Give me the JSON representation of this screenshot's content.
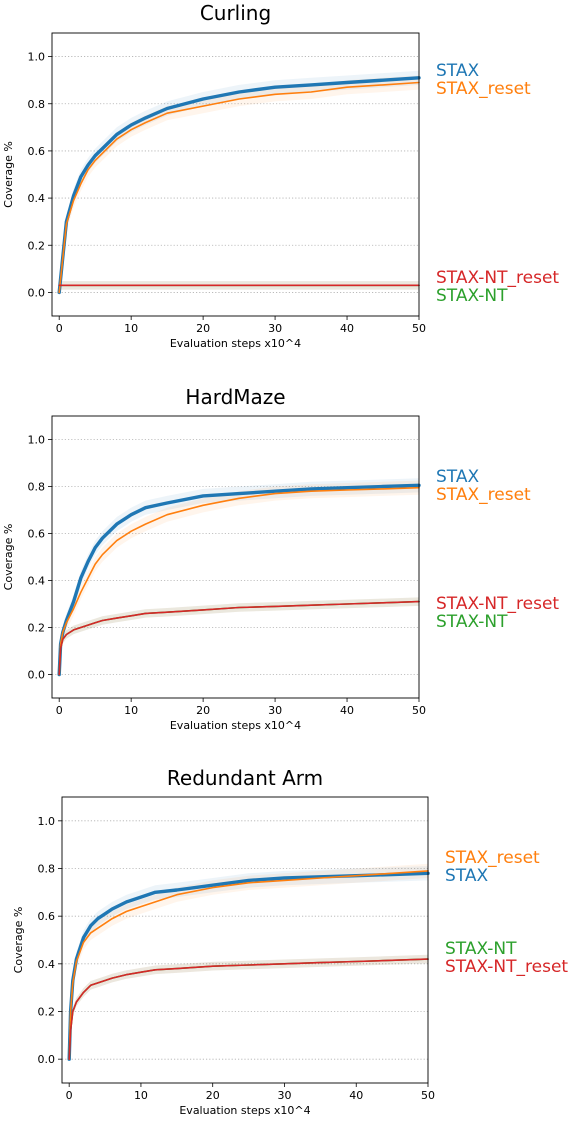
{
  "colors": {
    "STAX": "#1f77b4",
    "STAX_reset": "#ff7f0e",
    "STAX-NT_reset": "#d62728",
    "STAX-NT": "#2ca02c",
    "grid": "#b0b0b0"
  },
  "chart_data": [
    {
      "type": "line",
      "title": "Curling",
      "xlabel": "Evaluation steps x10^4",
      "ylabel": "Coverage %",
      "xlim": [
        -1,
        50
      ],
      "ylim": [
        -0.1,
        1.1
      ],
      "xticks": [
        "0",
        "10",
        "20",
        "30",
        "40",
        "50"
      ],
      "yticks": [
        "0.0",
        "0.2",
        "0.4",
        "0.6",
        "0.8",
        "1.0"
      ],
      "grid": "horizontal dotted",
      "legend_order": [
        "STAX",
        "STAX_reset",
        "STAX-NT_reset",
        "STAX-NT"
      ],
      "x": [
        0,
        1,
        2,
        3,
        4,
        5,
        6,
        8,
        10,
        12,
        15,
        20,
        25,
        30,
        35,
        40,
        45,
        50
      ],
      "series": [
        {
          "name": "STAX",
          "values": [
            0.0,
            0.3,
            0.41,
            0.49,
            0.54,
            0.58,
            0.61,
            0.67,
            0.71,
            0.74,
            0.78,
            0.82,
            0.85,
            0.87,
            0.88,
            0.89,
            0.9,
            0.91
          ]
        },
        {
          "name": "STAX_reset",
          "values": [
            0.0,
            0.29,
            0.39,
            0.46,
            0.52,
            0.56,
            0.59,
            0.65,
            0.69,
            0.72,
            0.76,
            0.79,
            0.82,
            0.84,
            0.85,
            0.87,
            0.88,
            0.89
          ]
        },
        {
          "name": "STAX-NT_reset",
          "values": [
            0.03,
            0.03,
            0.03,
            0.03,
            0.03,
            0.03,
            0.03,
            0.03,
            0.03,
            0.03,
            0.03,
            0.03,
            0.03,
            0.03,
            0.03,
            0.03,
            0.03,
            0.03
          ]
        },
        {
          "name": "STAX-NT",
          "values": [
            0.03,
            0.03,
            0.03,
            0.03,
            0.03,
            0.03,
            0.03,
            0.03,
            0.03,
            0.03,
            0.03,
            0.03,
            0.03,
            0.03,
            0.03,
            0.03,
            0.03,
            0.03
          ]
        }
      ]
    },
    {
      "type": "line",
      "title": "HardMaze",
      "xlabel": "Evaluation steps x10^4",
      "ylabel": "Coverage %",
      "xlim": [
        -1,
        50
      ],
      "ylim": [
        -0.1,
        1.1
      ],
      "xticks": [
        "0",
        "10",
        "20",
        "30",
        "40",
        "50"
      ],
      "yticks": [
        "0.0",
        "0.2",
        "0.4",
        "0.6",
        "0.8",
        "1.0"
      ],
      "grid": "horizontal dotted",
      "legend_order": [
        "STAX",
        "STAX_reset",
        "STAX-NT_reset",
        "STAX-NT"
      ],
      "x": [
        0,
        0.2,
        0.5,
        1,
        2,
        3,
        4,
        5,
        6,
        8,
        10,
        12,
        15,
        20,
        25,
        30,
        35,
        40,
        45,
        50
      ],
      "series": [
        {
          "name": "STAX",
          "values": [
            0.0,
            0.13,
            0.18,
            0.23,
            0.31,
            0.41,
            0.48,
            0.54,
            0.58,
            0.64,
            0.68,
            0.71,
            0.73,
            0.76,
            0.77,
            0.78,
            0.79,
            0.795,
            0.8,
            0.805
          ]
        },
        {
          "name": "STAX_reset",
          "values": [
            0.0,
            0.13,
            0.18,
            0.22,
            0.28,
            0.35,
            0.41,
            0.47,
            0.51,
            0.57,
            0.61,
            0.64,
            0.68,
            0.72,
            0.75,
            0.77,
            0.78,
            0.785,
            0.79,
            0.795
          ]
        },
        {
          "name": "STAX-NT_reset",
          "values": [
            0.0,
            0.11,
            0.15,
            0.17,
            0.19,
            0.2,
            0.21,
            0.22,
            0.23,
            0.24,
            0.25,
            0.26,
            0.265,
            0.275,
            0.285,
            0.29,
            0.295,
            0.3,
            0.305,
            0.31
          ]
        },
        {
          "name": "STAX-NT",
          "values": [
            0.0,
            0.11,
            0.15,
            0.17,
            0.19,
            0.2,
            0.21,
            0.22,
            0.23,
            0.24,
            0.25,
            0.26,
            0.265,
            0.275,
            0.285,
            0.29,
            0.295,
            0.3,
            0.305,
            0.31
          ]
        }
      ]
    },
    {
      "type": "line",
      "title": "Redundant Arm",
      "xlabel": "Evaluation steps x10^4",
      "ylabel": "Coverage %",
      "xlim": [
        -1,
        50
      ],
      "ylim": [
        -0.1,
        1.1
      ],
      "xticks": [
        "0",
        "10",
        "20",
        "30",
        "40",
        "50"
      ],
      "yticks": [
        "0.0",
        "0.2",
        "0.4",
        "0.6",
        "0.8",
        "1.0"
      ],
      "grid": "horizontal dotted",
      "legend_order": [
        "STAX_reset",
        "STAX",
        "STAX-NT",
        "STAX-NT_reset"
      ],
      "x": [
        0,
        0.2,
        0.5,
        1,
        2,
        3,
        4,
        5,
        6,
        8,
        10,
        12,
        15,
        20,
        25,
        30,
        35,
        40,
        45,
        50
      ],
      "series": [
        {
          "name": "STAX_reset",
          "values": [
            0.0,
            0.2,
            0.32,
            0.41,
            0.49,
            0.53,
            0.55,
            0.57,
            0.59,
            0.62,
            0.64,
            0.66,
            0.69,
            0.72,
            0.74,
            0.75,
            0.76,
            0.77,
            0.78,
            0.79
          ]
        },
        {
          "name": "STAX",
          "values": [
            0.0,
            0.2,
            0.33,
            0.42,
            0.51,
            0.56,
            0.59,
            0.61,
            0.63,
            0.66,
            0.68,
            0.7,
            0.71,
            0.73,
            0.75,
            0.76,
            0.765,
            0.77,
            0.775,
            0.78
          ]
        },
        {
          "name": "STAX-NT",
          "values": [
            0.0,
            0.12,
            0.2,
            0.24,
            0.28,
            0.31,
            0.32,
            0.33,
            0.34,
            0.355,
            0.365,
            0.375,
            0.38,
            0.39,
            0.395,
            0.4,
            0.405,
            0.41,
            0.415,
            0.42
          ]
        },
        {
          "name": "STAX-NT_reset",
          "values": [
            0.0,
            0.12,
            0.2,
            0.24,
            0.28,
            0.31,
            0.32,
            0.33,
            0.34,
            0.355,
            0.365,
            0.375,
            0.38,
            0.39,
            0.395,
            0.4,
            0.405,
            0.41,
            0.415,
            0.42
          ]
        }
      ]
    }
  ]
}
